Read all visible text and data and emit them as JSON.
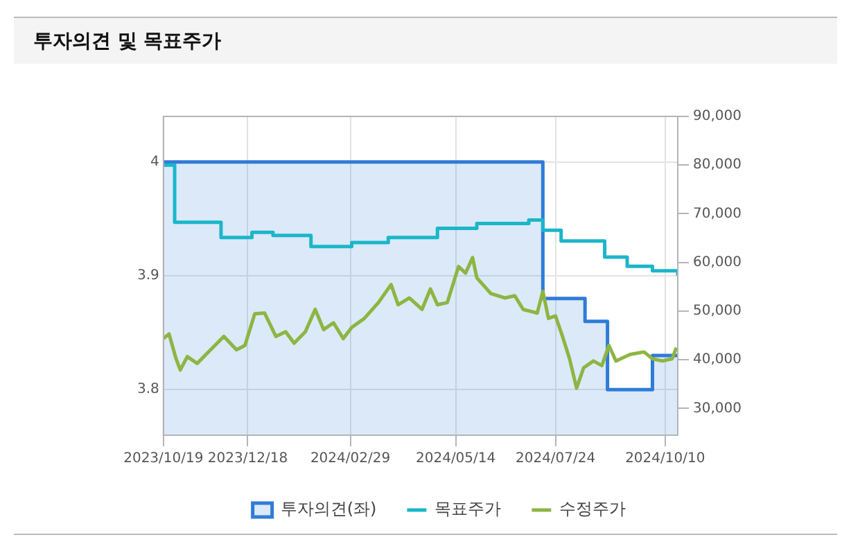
{
  "chart_data": {
    "type": "line",
    "title": "투자의견 및 목표주가",
    "xlim": [
      "2023-10-19",
      "2024-10-19"
    ],
    "xticks": [
      {
        "value": "2023-10-19",
        "label": "2023/10/19"
      },
      {
        "value": "2023-12-18",
        "label": "2023/12/18"
      },
      {
        "value": "2024-02-29",
        "label": "2024/02/29"
      },
      {
        "value": "2024-05-14",
        "label": "2024/05/14"
      },
      {
        "value": "2024-07-24",
        "label": "2024/07/24"
      },
      {
        "value": "2024-10-10",
        "label": "2024/10/10"
      }
    ],
    "ylim": [
      3.76,
      4.04
    ],
    "yticks": [
      3.8,
      3.9,
      4
    ],
    "y2lim": [
      24500,
      90000
    ],
    "y2ticks": [
      {
        "value": 30000,
        "label": "30,000"
      },
      {
        "value": 40000,
        "label": "40,000"
      },
      {
        "value": 50000,
        "label": "50,000"
      },
      {
        "value": 60000,
        "label": "60,000"
      },
      {
        "value": 70000,
        "label": "70,000"
      },
      {
        "value": 80000,
        "label": "80,000"
      },
      {
        "value": 90000,
        "label": "90,000"
      }
    ],
    "grid": true,
    "legend": "bottom",
    "series": [
      {
        "name": "투자의견(좌)",
        "type": "area",
        "color": "#2f7bd8",
        "x": [
          "2023-10-19",
          "2024-07-15",
          "2024-07-15",
          "2024-08-14",
          "2024-08-14",
          "2024-08-30",
          "2024-08-30",
          "2024-10-01",
          "2024-10-01",
          "2024-10-19"
        ],
        "values": [
          4,
          4,
          3.88,
          3.88,
          3.86,
          3.86,
          3.8,
          3.8,
          3.83,
          3.83
        ]
      },
      {
        "name": "목표주가",
        "type": "step",
        "axis": "y2",
        "color": "#1bb6c9",
        "x": [
          "2023-10-19",
          "2023-10-27",
          "2023-11-29",
          "2023-12-21",
          "2024-01-05",
          "2024-02-01",
          "2024-03-01",
          "2024-03-27",
          "2024-05-01",
          "2024-05-29",
          "2024-07-05",
          "2024-07-15",
          "2024-07-28",
          "2024-08-28",
          "2024-09-13",
          "2024-10-01",
          "2024-10-19"
        ],
        "values": [
          80000,
          68250,
          65100,
          66200,
          65550,
          63250,
          64100,
          65100,
          67000,
          68000,
          68700,
          66600,
          64400,
          61100,
          59200,
          58300,
          57300
        ]
      },
      {
        "name": "수정주가",
        "type": "line",
        "axis": "y2",
        "color": "#8db543",
        "x": [
          "2023-10-19",
          "2023-10-23",
          "2023-10-28",
          "2023-10-31",
          "2023-11-05",
          "2023-11-12",
          "2023-11-20",
          "2023-12-01",
          "2023-12-10",
          "2023-12-16",
          "2023-12-23",
          "2023-12-30",
          "2024-01-07",
          "2024-01-14",
          "2024-01-20",
          "2024-01-28",
          "2024-02-04",
          "2024-02-10",
          "2024-02-17",
          "2024-02-24",
          "2024-03-01",
          "2024-03-10",
          "2024-03-20",
          "2024-03-29",
          "2024-04-03",
          "2024-04-11",
          "2024-04-20",
          "2024-04-26",
          "2024-05-01",
          "2024-05-08",
          "2024-05-16",
          "2024-05-21",
          "2024-05-26",
          "2024-05-29",
          "2024-06-08",
          "2024-06-18",
          "2024-06-25",
          "2024-07-01",
          "2024-07-11",
          "2024-07-15",
          "2024-07-19",
          "2024-07-24",
          "2024-07-29",
          "2024-08-03",
          "2024-08-08",
          "2024-08-13",
          "2024-08-20",
          "2024-08-26",
          "2024-08-31",
          "2024-09-05",
          "2024-09-15",
          "2024-09-25",
          "2024-10-01",
          "2024-10-08",
          "2024-10-15",
          "2024-10-18"
        ],
        "values": [
          44350,
          45300,
          40200,
          37900,
          40650,
          39250,
          41600,
          44800,
          42050,
          42950,
          49450,
          49600,
          44800,
          45750,
          43400,
          45750,
          50350,
          46200,
          47600,
          44350,
          46650,
          48500,
          51750,
          55450,
          51300,
          52700,
          50350,
          54550,
          51300,
          51750,
          59150,
          57800,
          61000,
          56850,
          53600,
          52700,
          53150,
          50350,
          49600,
          54050,
          48500,
          49000,
          44800,
          40200,
          34150,
          38350,
          39750,
          38800,
          42950,
          39750,
          41100,
          41600,
          40200,
          39750,
          40200,
          42500
        ]
      }
    ]
  }
}
